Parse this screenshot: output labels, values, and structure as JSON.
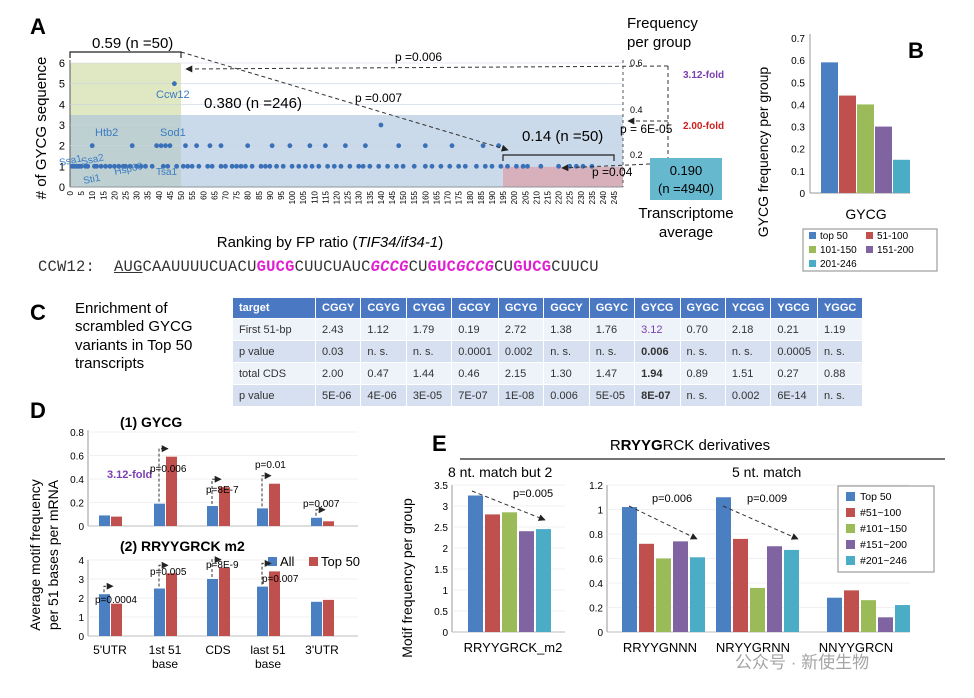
{
  "panel_labels": {
    "a": "A",
    "b": "B",
    "c": "C",
    "d": "D",
    "e": "E"
  },
  "colors": {
    "blue": "#4a7fc1",
    "red": "#c0504d",
    "green": "#9bbb59",
    "purple": "#8064a2",
    "cyan": "#4bacc6",
    "magenta": "#e020d0",
    "fold_purple": "#7a3fb0",
    "fold_red": "#cc1f1f"
  },
  "panelA": {
    "ylabel": "# of GYCG sequence",
    "xlabel_prefix": "Ranking by FP ratio (",
    "xlabel_italic": "TIF34/if34-1",
    "xlabel_suffix": ")",
    "right_title_1": "Frequency",
    "right_title_2": "per group",
    "right_ticks": [
      "0.6",
      "0.4",
      "0.2"
    ],
    "group_top": "0.59 (n =50)",
    "group_mid": "0.380 (n =246)",
    "group_low": "0.14 (n =50)",
    "avg_value": "0.190",
    "avg_n": "(n =4940)",
    "avg_label_1": "Transcriptome",
    "avg_label_2": "average",
    "p1": "p =0.006",
    "p2": "p =0.007",
    "p3": "p = 6E-05",
    "p4": "p =0.04",
    "fold1": "3.12-fold",
    "fold2": "2.00-fold",
    "genes": [
      "Ccw12",
      "Htb2",
      "Sod1",
      "Ssa1",
      "Ssa2",
      "Sti1",
      "Hsp60",
      "Tsa1"
    ],
    "y_ticks": [
      "0",
      "1",
      "2",
      "3",
      "4",
      "5",
      "6"
    ],
    "x_ticks": [
      "0",
      "5",
      "10",
      "15",
      "20",
      "25",
      "30",
      "35",
      "40",
      "45",
      "50",
      "55",
      "60",
      "65",
      "70",
      "75",
      "80",
      "85",
      "90",
      "95",
      "100",
      "105",
      "110",
      "115",
      "120",
      "125",
      "130",
      "135",
      "140",
      "145",
      "150",
      "155",
      "160",
      "165",
      "170",
      "175",
      "180",
      "185",
      "190",
      "195",
      "200",
      "205",
      "210",
      "215",
      "220",
      "225",
      "230",
      "235",
      "240",
      "245"
    ]
  },
  "sequence": {
    "label": "CCW12:",
    "parts": [
      {
        "t": "AUG",
        "s": "u"
      },
      {
        "t": "CAAUUUUCUACU",
        "s": ""
      },
      {
        "t": "GUCG",
        "s": "m"
      },
      {
        "t": "CUUCUAUC",
        "s": ""
      },
      {
        "t": "GCCG",
        "s": "mi"
      },
      {
        "t": "CU",
        "s": ""
      },
      {
        "t": "GUC",
        "s": "m"
      },
      {
        "t": "GCCG",
        "s": "mi"
      },
      {
        "t": "CU",
        "s": ""
      },
      {
        "t": "GUCG",
        "s": "m"
      },
      {
        "t": "CUUCU",
        "s": ""
      }
    ]
  },
  "panelC": {
    "caption_1": "Enrichment of",
    "caption_2": "scrambled GYCG",
    "caption_3": "variants in Top 50",
    "caption_4": "transcripts",
    "headers": [
      "target",
      "CGGY",
      "CGYG",
      "CYGG",
      "GCGY",
      "GCYG",
      "GGCY",
      "GGYC",
      "GYCG",
      "GYGC",
      "YCGG",
      "YGCG",
      "YGGC"
    ],
    "rows": [
      [
        "First 51-bp",
        "2.43",
        "1.12",
        "1.79",
        "0.19",
        "2.72",
        "1.38",
        "1.76",
        "3.12",
        "0.70",
        "2.18",
        "0.21",
        "1.19"
      ],
      [
        "p value",
        "0.03",
        "n. s.",
        "n. s.",
        "0.0001",
        "0.002",
        "n. s.",
        "n. s.",
        "0.006",
        "n. s.",
        "n. s.",
        "0.0005",
        "n. s."
      ],
      [
        "total CDS",
        "2.00",
        "0.47",
        "1.44",
        "0.46",
        "2.15",
        "1.30",
        "1.47",
        "1.94",
        "0.89",
        "1.51",
        "0.27",
        "0.88"
      ],
      [
        "p value",
        "5E-06",
        "4E-06",
        "3E-05",
        "7E-07",
        "1E-08",
        "0.006",
        "5E-05",
        "8E-07",
        "n. s.",
        "0.002",
        "6E-14",
        "n. s."
      ]
    ]
  },
  "panelD": {
    "ylabel_1": "Average motif frequency",
    "ylabel_2": "per 51 bases per mRNA",
    "title1": "(1) GYCG",
    "title2_pre": "(2) R",
    "title2_bold": "RYYG",
    "title2_post": "RCK m2",
    "fold": "3.12-fold",
    "legend": [
      "All",
      "Top 50"
    ],
    "x_categories": [
      "5'UTR",
      "1st 51",
      "base",
      "CDS",
      "last 51",
      "base",
      "3'UTR"
    ],
    "p_top": [
      "p=0.006",
      "p=8E-7",
      "p=0.01",
      "p=0.007"
    ],
    "p_bottom": [
      "p=0.0004",
      "p=0.005",
      "p=8E-9",
      "p=0.007"
    ]
  },
  "panelE": {
    "header_pre": "R",
    "header_bold": "RYYG",
    "header_post": "RCK derivatives",
    "sub1": "8 nt. match but 2",
    "sub2": "5 nt. match",
    "ylabel": "Motif frequency per group",
    "p": [
      "p=0.005",
      "p=0.006",
      "p=0.009"
    ],
    "legend": [
      "Top 50",
      "#51~100",
      "#101~150",
      "#151~200",
      "#201~246"
    ],
    "groups": [
      "RRYYGRCK_m2",
      "RRYYGNNN",
      "NRYYGRNN",
      "NNYYGRCN"
    ]
  },
  "watermark": "公众号 · 新使生物",
  "chart_data": [
    {
      "id": "A",
      "type": "scatter",
      "title": "",
      "xlabel": "Ranking by FP ratio (TIF34/if34-1)",
      "ylabel": "# of GYCG sequence",
      "xlim": [
        0,
        249
      ],
      "ylim": [
        0,
        6
      ],
      "points": [
        [
          1,
          1
        ],
        [
          2,
          1
        ],
        [
          3,
          1
        ],
        [
          4,
          1
        ],
        [
          5,
          1
        ],
        [
          7,
          1
        ],
        [
          8,
          1
        ],
        [
          10,
          2
        ],
        [
          11,
          1
        ],
        [
          12,
          1
        ],
        [
          14,
          1
        ],
        [
          16,
          1
        ],
        [
          18,
          1
        ],
        [
          20,
          1
        ],
        [
          22,
          1
        ],
        [
          24,
          1
        ],
        [
          25,
          1
        ],
        [
          27,
          1
        ],
        [
          28,
          2
        ],
        [
          30,
          1
        ],
        [
          32,
          1
        ],
        [
          34,
          1
        ],
        [
          37,
          1
        ],
        [
          39,
          2
        ],
        [
          41,
          2
        ],
        [
          42,
          1
        ],
        [
          43,
          2
        ],
        [
          44,
          1
        ],
        [
          45,
          2
        ],
        [
          47,
          5
        ],
        [
          48,
          1
        ],
        [
          51,
          1
        ],
        [
          53,
          1
        ],
        [
          55,
          1
        ],
        [
          58,
          1
        ],
        [
          62,
          1
        ],
        [
          64,
          1
        ],
        [
          68,
          1
        ],
        [
          70,
          1
        ],
        [
          73,
          1
        ],
        [
          75,
          1
        ],
        [
          77,
          1
        ],
        [
          79,
          1
        ],
        [
          82,
          1
        ],
        [
          86,
          1
        ],
        [
          88,
          1
        ],
        [
          90,
          1
        ],
        [
          93,
          1
        ],
        [
          96,
          1
        ],
        [
          100,
          1
        ],
        [
          103,
          1
        ],
        [
          106,
          1
        ],
        [
          109,
          1
        ],
        [
          112,
          1
        ],
        [
          116,
          1
        ],
        [
          119,
          1
        ],
        [
          122,
          1
        ],
        [
          126,
          1
        ],
        [
          130,
          1
        ],
        [
          132,
          1
        ],
        [
          135,
          1
        ],
        [
          139,
          1
        ],
        [
          143,
          1
        ],
        [
          147,
          1
        ],
        [
          150,
          1
        ],
        [
          155,
          1
        ],
        [
          160,
          1
        ],
        [
          163,
          1
        ],
        [
          167,
          1
        ],
        [
          171,
          1
        ],
        [
          175,
          1
        ],
        [
          178,
          1
        ],
        [
          183,
          1
        ],
        [
          187,
          1
        ],
        [
          190,
          1
        ],
        [
          194,
          1
        ],
        [
          197,
          1
        ],
        [
          201,
          1
        ],
        [
          52,
          2
        ],
        [
          57,
          2
        ],
        [
          63,
          2
        ],
        [
          68,
          2
        ],
        [
          80,
          2
        ],
        [
          91,
          2
        ],
        [
          99,
          2
        ],
        [
          108,
          2
        ],
        [
          115,
          2
        ],
        [
          124,
          2
        ],
        [
          133,
          2
        ],
        [
          140,
          3
        ],
        [
          148,
          2
        ],
        [
          160,
          2
        ],
        [
          172,
          2
        ],
        [
          186,
          2
        ],
        [
          193,
          2
        ],
        [
          204,
          1
        ],
        [
          206,
          1
        ],
        [
          212,
          1
        ],
        [
          220,
          1
        ],
        [
          225,
          1
        ],
        [
          228,
          1
        ],
        [
          231,
          1
        ],
        [
          235,
          1
        ]
      ],
      "labels": [
        "Ccw12",
        "Htb2",
        "Sod1",
        "Ssa1",
        "Ssa2",
        "Sti1",
        "Hsp60",
        "Tsa1"
      ],
      "group_frequencies": [
        {
          "group": "top 50",
          "freq": 0.59
        },
        {
          "group": "n=246",
          "freq": 0.38
        },
        {
          "group": "bottom 50",
          "freq": 0.14
        },
        {
          "group": "transcriptome",
          "freq": 0.19
        }
      ]
    },
    {
      "id": "B",
      "type": "bar",
      "title": "",
      "xlabel": "GYCG",
      "ylabel": "GYCG frequency per group",
      "categories": [
        "top 50",
        "51-100",
        "101-150",
        "151-200",
        "201-246"
      ],
      "values": [
        0.59,
        0.44,
        0.4,
        0.3,
        0.15
      ],
      "ylim": [
        0,
        0.7
      ],
      "yticks": [
        "0",
        "0.1",
        "0.2",
        "0.3",
        "0.4",
        "0.5",
        "0.6",
        "0.7"
      ]
    },
    {
      "id": "D1",
      "type": "bar",
      "title": "(1) GYCG",
      "categories": [
        "5'UTR",
        "1st 51 base",
        "CDS",
        "last 51 base",
        "3'UTR"
      ],
      "series": [
        {
          "name": "All",
          "values": [
            0.09,
            0.19,
            0.17,
            0.15,
            0.07
          ]
        },
        {
          "name": "Top 50",
          "values": [
            0.08,
            0.59,
            0.33,
            0.36,
            0.04
          ]
        }
      ],
      "ylim": [
        0,
        0.8
      ],
      "yticks": [
        "0",
        "0.2",
        "0.4",
        "0.6",
        "0.8"
      ]
    },
    {
      "id": "D2",
      "type": "bar",
      "title": "(2) RRYYGRCK m2",
      "categories": [
        "5'UTR",
        "1st 51 base",
        "CDS",
        "last 51 base",
        "3'UTR"
      ],
      "series": [
        {
          "name": "All",
          "values": [
            2.2,
            2.5,
            3.0,
            2.6,
            1.8
          ]
        },
        {
          "name": "Top 50",
          "values": [
            1.7,
            3.3,
            3.6,
            3.4,
            1.9
          ]
        }
      ],
      "ylim": [
        0,
        4
      ],
      "yticks": [
        "0",
        "1",
        "2",
        "3",
        "4"
      ]
    },
    {
      "id": "E",
      "type": "bar",
      "title": "RRYYGRCK derivatives",
      "ylabel": "Motif frequency per group",
      "groups": [
        {
          "name": "RRYYGRCK_m2",
          "ylim": [
            0,
            3.5
          ],
          "yticks": [
            "0",
            "0.5",
            "1",
            "1.5",
            "2",
            "2.5",
            "3",
            "3.5"
          ],
          "values": [
            3.25,
            2.8,
            2.85,
            2.4,
            2.45
          ]
        },
        {
          "name": "RRYYGNNN",
          "ylim": [
            0,
            1.2
          ],
          "yticks": [
            "0",
            "0.2",
            "0.4",
            "0.6",
            "0.8",
            "1",
            "1.2"
          ],
          "values": [
            1.02,
            0.72,
            0.6,
            0.74,
            0.61
          ]
        },
        {
          "name": "NRYYGRNN",
          "values": [
            1.1,
            0.76,
            0.36,
            0.7,
            0.67
          ]
        },
        {
          "name": "NNYYGRCN",
          "values": [
            0.28,
            0.34,
            0.26,
            0.12,
            0.22
          ]
        }
      ],
      "series_names": [
        "Top 50",
        "#51~100",
        "#101~150",
        "#151~200",
        "#201~246"
      ]
    }
  ]
}
